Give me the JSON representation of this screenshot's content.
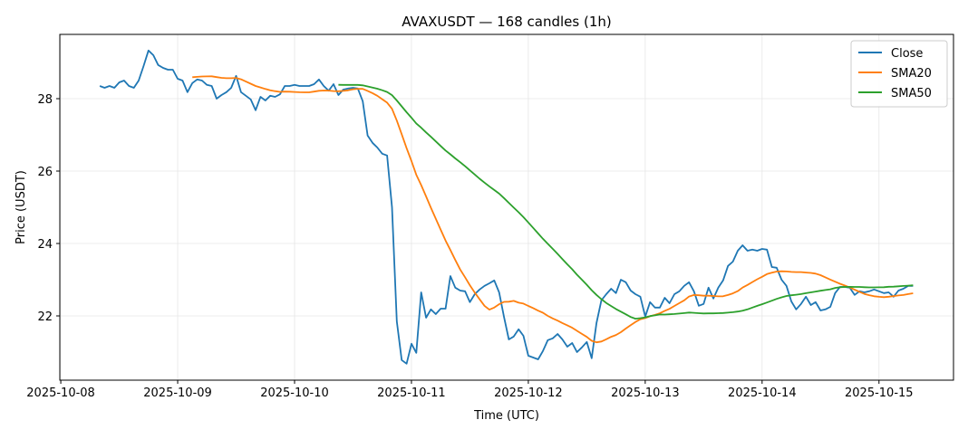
{
  "chart_data": {
    "type": "line",
    "title": "AVAXUSDT — 168 candles (1h)",
    "xlabel": "Time (UTC)",
    "ylabel": "Price (USDT)",
    "start_time": "2025-10-08 08:00",
    "interval_hours": 1,
    "x_range_hours_from_2025-10-08": [
      -0.2,
      183.3
    ],
    "ylim": [
      20.225,
      29.775
    ],
    "grid": true,
    "legend_position": "top-right",
    "x_ticks": [
      {
        "label": "2025-10-08",
        "hours": 0
      },
      {
        "label": "2025-10-09",
        "hours": 24
      },
      {
        "label": "2025-10-10",
        "hours": 48
      },
      {
        "label": "2025-10-11",
        "hours": 72
      },
      {
        "label": "2025-10-12",
        "hours": 96
      },
      {
        "label": "2025-10-13",
        "hours": 120
      },
      {
        "label": "2025-10-14",
        "hours": 144
      },
      {
        "label": "2025-10-15",
        "hours": 168
      }
    ],
    "y_ticks": [
      {
        "label": "22",
        "value": 22
      },
      {
        "label": "24",
        "value": 24
      },
      {
        "label": "26",
        "value": 26
      },
      {
        "label": "28",
        "value": 28
      }
    ],
    "series": [
      {
        "name": "Close",
        "color": "#1f77b4",
        "values": [
          28.35,
          28.3,
          28.35,
          28.3,
          28.45,
          28.5,
          28.35,
          28.3,
          28.5,
          28.9,
          29.33,
          29.2,
          28.93,
          28.85,
          28.8,
          28.8,
          28.55,
          28.5,
          28.18,
          28.43,
          28.53,
          28.5,
          28.38,
          28.35,
          28.0,
          28.1,
          28.18,
          28.3,
          28.63,
          28.18,
          28.08,
          27.98,
          27.68,
          28.05,
          27.95,
          28.08,
          28.05,
          28.12,
          28.35,
          28.35,
          28.38,
          28.35,
          28.35,
          28.35,
          28.4,
          28.53,
          28.35,
          28.22,
          28.4,
          28.1,
          28.25,
          28.28,
          28.3,
          28.28,
          27.93,
          26.98,
          26.78,
          26.65,
          26.48,
          26.43,
          25.0,
          21.85,
          20.78,
          20.68,
          21.23,
          20.98,
          22.65,
          21.95,
          22.18,
          22.05,
          22.2,
          22.2,
          23.1,
          22.78,
          22.7,
          22.68,
          22.38,
          22.6,
          22.73,
          22.83,
          22.9,
          22.98,
          22.65,
          21.98,
          21.35,
          21.43,
          21.63,
          21.45,
          20.9,
          20.85,
          20.8,
          21.03,
          21.33,
          21.38,
          21.5,
          21.35,
          21.15,
          21.25,
          21.0,
          21.13,
          21.28,
          20.83,
          21.8,
          22.43,
          22.6,
          22.75,
          22.63,
          23.0,
          22.93,
          22.7,
          22.6,
          22.53,
          21.98,
          22.38,
          22.23,
          22.23,
          22.5,
          22.35,
          22.6,
          22.68,
          22.83,
          22.93,
          22.68,
          22.28,
          22.33,
          22.78,
          22.48,
          22.78,
          22.98,
          23.38,
          23.5,
          23.8,
          23.95,
          23.8,
          23.83,
          23.8,
          23.85,
          23.83,
          23.35,
          23.33,
          23.0,
          22.83,
          22.4,
          22.18,
          22.33,
          22.53,
          22.3,
          22.38,
          22.15,
          22.18,
          22.25,
          22.63,
          22.8,
          22.8,
          22.78,
          22.58,
          22.68,
          22.65,
          22.68,
          22.73,
          22.68,
          22.63,
          22.65,
          22.53,
          22.7,
          22.75,
          22.83,
          22.83
        ]
      },
      {
        "name": "SMA20",
        "color": "#ff7f0e",
        "window": 20
      },
      {
        "name": "SMA50",
        "color": "#2ca02c",
        "window": 50
      }
    ]
  }
}
